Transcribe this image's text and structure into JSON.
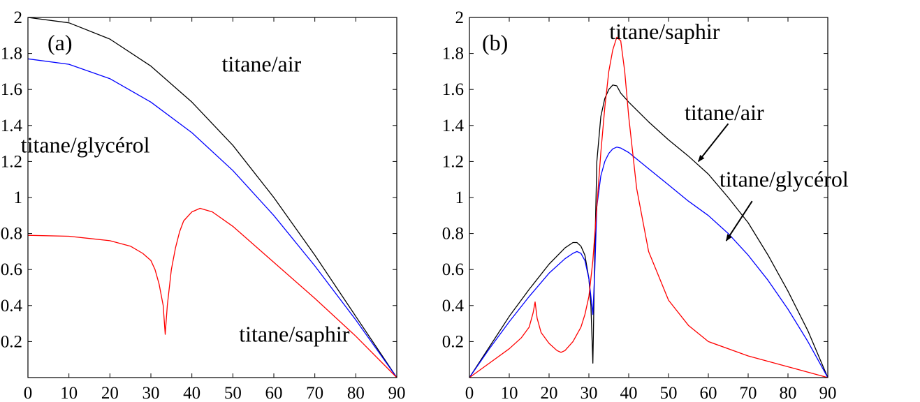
{
  "chart_data": [
    {
      "type": "line",
      "panel_label": "(a)",
      "xlim": [
        0,
        90
      ],
      "ylim": [
        0,
        2
      ],
      "xticks": [
        "0",
        "10",
        "20",
        "30",
        "40",
        "50",
        "60",
        "70",
        "80",
        "90"
      ],
      "yticks": [
        "0.2",
        "0.4",
        "0.6",
        "0.8",
        "1",
        "1.2",
        "1.4",
        "1.6",
        "1.8",
        "2"
      ],
      "grid": false,
      "series": [
        {
          "name": "titane/air",
          "color": "#000000",
          "x": [
            0,
            10,
            20,
            30,
            40,
            50,
            60,
            70,
            80,
            85,
            90
          ],
          "y": [
            2.0,
            1.97,
            1.88,
            1.73,
            1.53,
            1.29,
            1.0,
            0.68,
            0.34,
            0.17,
            0.0
          ]
        },
        {
          "name": "titane/glycérol",
          "color": "#0000ff",
          "x": [
            0,
            10,
            20,
            30,
            40,
            50,
            60,
            70,
            80,
            85,
            90
          ],
          "y": [
            1.77,
            1.74,
            1.66,
            1.53,
            1.36,
            1.15,
            0.9,
            0.62,
            0.32,
            0.16,
            0.0
          ]
        },
        {
          "name": "titane/saphir",
          "color": "#ff0000",
          "x": [
            0,
            10,
            20,
            25,
            28,
            30,
            31,
            32,
            33,
            33.5,
            34,
            35,
            36,
            37,
            38,
            40,
            42,
            45,
            50,
            60,
            70,
            80,
            90
          ],
          "y": [
            0.79,
            0.785,
            0.76,
            0.73,
            0.69,
            0.65,
            0.6,
            0.52,
            0.4,
            0.24,
            0.4,
            0.6,
            0.72,
            0.81,
            0.87,
            0.92,
            0.94,
            0.92,
            0.84,
            0.64,
            0.44,
            0.23,
            0.0
          ]
        }
      ],
      "annotations": [
        {
          "text": "titane/air",
          "x": 57,
          "y": 1.7
        },
        {
          "text": "titane/glycérol",
          "x": 14,
          "y": 1.25
        },
        {
          "text": "titane/saphir",
          "x": 65,
          "y": 0.2
        }
      ]
    },
    {
      "type": "line",
      "panel_label": "(b)",
      "xlim": [
        0,
        90
      ],
      "ylim": [
        0,
        2
      ],
      "xticks": [
        "0",
        "10",
        "20",
        "30",
        "40",
        "50",
        "60",
        "70",
        "80",
        "90"
      ],
      "yticks": [
        "0.2",
        "0.4",
        "0.6",
        "0.8",
        "1",
        "1.2",
        "1.4",
        "1.6",
        "1.8",
        "2"
      ],
      "grid": false,
      "series": [
        {
          "name": "titane/air",
          "color": "#000000",
          "x": [
            0,
            5,
            10,
            15,
            20,
            24,
            26,
            27,
            28,
            29,
            30,
            30.5,
            31,
            31.5,
            32,
            33,
            34,
            35,
            36,
            37,
            38,
            40,
            45,
            50,
            55,
            60,
            65,
            70,
            75,
            80,
            85,
            90
          ],
          "y": [
            0.0,
            0.17,
            0.34,
            0.49,
            0.63,
            0.72,
            0.75,
            0.75,
            0.73,
            0.68,
            0.55,
            0.4,
            0.08,
            0.7,
            1.2,
            1.45,
            1.55,
            1.6,
            1.625,
            1.62,
            1.58,
            1.53,
            1.42,
            1.32,
            1.23,
            1.13,
            1.0,
            0.86,
            0.68,
            0.48,
            0.26,
            0.0
          ]
        },
        {
          "name": "titane/glycérol",
          "color": "#0000ff",
          "x": [
            0,
            5,
            10,
            15,
            20,
            24,
            26,
            27,
            28,
            29,
            30,
            30.5,
            31,
            31.5,
            32,
            33,
            34,
            35,
            36,
            37,
            38,
            40,
            45,
            50,
            55,
            60,
            65,
            70,
            75,
            80,
            85,
            90
          ],
          "y": [
            0.0,
            0.16,
            0.31,
            0.45,
            0.58,
            0.66,
            0.69,
            0.7,
            0.69,
            0.65,
            0.55,
            0.45,
            0.35,
            0.6,
            0.95,
            1.12,
            1.2,
            1.245,
            1.27,
            1.28,
            1.275,
            1.25,
            1.16,
            1.07,
            0.98,
            0.9,
            0.8,
            0.68,
            0.54,
            0.38,
            0.2,
            0.0
          ]
        },
        {
          "name": "titane/saphir",
          "color": "#ff0000",
          "x": [
            0,
            5,
            10,
            13,
            15,
            16,
            16.5,
            17,
            18,
            20,
            22,
            23,
            24,
            26,
            28,
            29,
            30,
            31,
            32,
            33,
            34,
            35,
            36,
            37,
            38,
            39,
            40,
            42,
            45,
            50,
            55,
            60,
            70,
            80,
            90
          ],
          "y": [
            0.0,
            0.08,
            0.16,
            0.22,
            0.28,
            0.36,
            0.42,
            0.33,
            0.25,
            0.19,
            0.15,
            0.14,
            0.15,
            0.2,
            0.28,
            0.35,
            0.45,
            0.65,
            0.95,
            1.25,
            1.5,
            1.7,
            1.82,
            1.89,
            1.87,
            1.7,
            1.45,
            1.05,
            0.7,
            0.43,
            0.29,
            0.2,
            0.12,
            0.06,
            0.0
          ]
        }
      ],
      "annotations": [
        {
          "text": "titane/saphir",
          "x": 49,
          "y": 1.88
        },
        {
          "text": "titane/air",
          "x": 64,
          "y": 1.43
        },
        {
          "text": "titane/glycérol",
          "x": 79,
          "y": 1.06
        }
      ],
      "arrows": [
        {
          "label": "titane/air",
          "from": [
            65,
            1.41
          ],
          "to": [
            57.5,
            1.2
          ]
        },
        {
          "label": "titane/glycérol",
          "from": [
            71,
            0.98
          ],
          "to": [
            64.5,
            0.76
          ]
        }
      ]
    }
  ]
}
